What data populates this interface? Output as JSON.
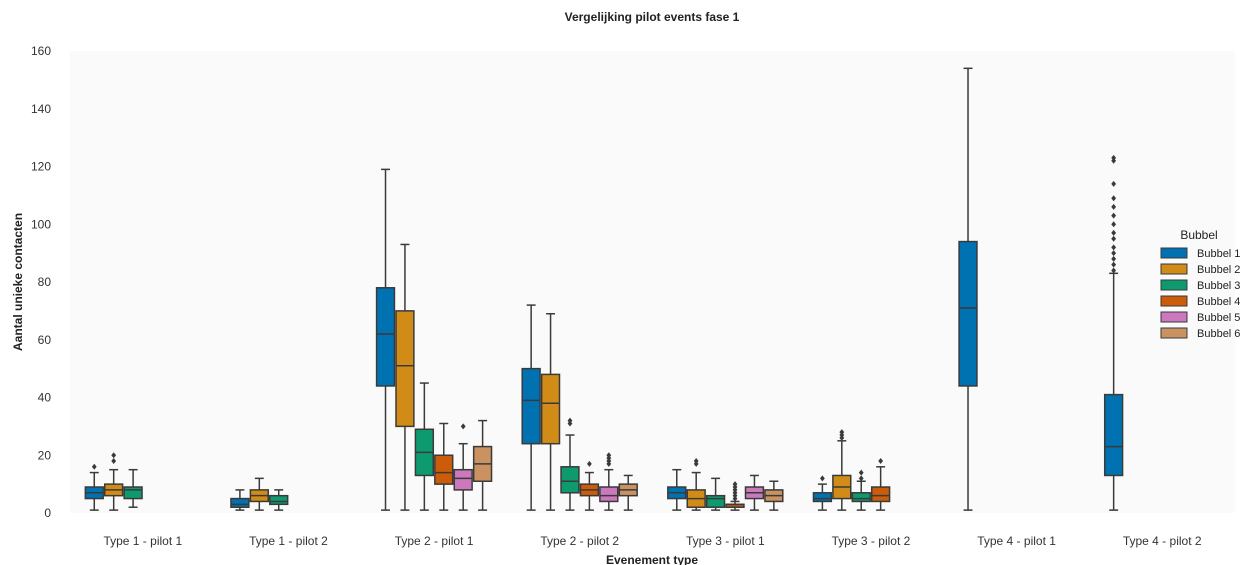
{
  "chart_data": {
    "type": "box",
    "title": "Vergelijking pilot events fase 1",
    "xlabel": "Evenement type",
    "ylabel": "Aantal unieke contacten",
    "ylim": [
      0,
      160
    ],
    "yticks": [
      0,
      20,
      40,
      60,
      80,
      100,
      120,
      140,
      160
    ],
    "grid": false,
    "legend": {
      "title": "Bubbel",
      "position": "right"
    },
    "categories": [
      "Type 1 - pilot 1",
      "Type 1 - pilot 2",
      "Type 2 - pilot 1",
      "Type 2 - pilot 2",
      "Type 3 - pilot 1",
      "Type 3 - pilot 2",
      "Type 4 - pilot 1",
      "Type 4 - pilot 2"
    ],
    "series": [
      {
        "name": "Bubbel 1",
        "color": "#0072b2",
        "boxes": [
          {
            "category": 0,
            "min": 1,
            "q1": 5,
            "median": 7,
            "q3": 9,
            "max": 14,
            "outliers": [
              16
            ]
          },
          {
            "category": 1,
            "min": 1,
            "q1": 2,
            "median": 3,
            "q3": 5,
            "max": 8,
            "outliers": []
          },
          {
            "category": 2,
            "min": 1,
            "q1": 44,
            "median": 62,
            "q3": 78,
            "max": 119,
            "outliers": []
          },
          {
            "category": 3,
            "min": 1,
            "q1": 24,
            "median": 39,
            "q3": 50,
            "max": 72,
            "outliers": []
          },
          {
            "category": 4,
            "min": 1,
            "q1": 5,
            "median": 7,
            "q3": 9,
            "max": 15,
            "outliers": []
          },
          {
            "category": 5,
            "min": 1,
            "q1": 4,
            "median": 5,
            "q3": 7,
            "max": 10,
            "outliers": [
              12
            ]
          },
          {
            "category": 6,
            "min": 1,
            "q1": 44,
            "median": 71,
            "q3": 94,
            "max": 154,
            "outliers": []
          },
          {
            "category": 7,
            "min": 1,
            "q1": 13,
            "median": 23,
            "q3": 41,
            "max": 83,
            "outliers": [
              84,
              86,
              88,
              90,
              92,
              95,
              97,
              100,
              103,
              106,
              109,
              114,
              122,
              123
            ]
          }
        ]
      },
      {
        "name": "Bubbel 2",
        "color": "#d08c17",
        "boxes": [
          {
            "category": 0,
            "min": 1,
            "q1": 6,
            "median": 8,
            "q3": 10,
            "max": 15,
            "outliers": [
              18,
              20
            ]
          },
          {
            "category": 1,
            "min": 1,
            "q1": 4,
            "median": 6,
            "q3": 8,
            "max": 12,
            "outliers": []
          },
          {
            "category": 2,
            "min": 1,
            "q1": 30,
            "median": 51,
            "q3": 70,
            "max": 93,
            "outliers": []
          },
          {
            "category": 3,
            "min": 1,
            "q1": 24,
            "median": 38,
            "q3": 48,
            "max": 69,
            "outliers": []
          },
          {
            "category": 4,
            "min": 1,
            "q1": 2,
            "median": 5,
            "q3": 8,
            "max": 14,
            "outliers": [
              17,
              18
            ]
          },
          {
            "category": 5,
            "min": 1,
            "q1": 5,
            "median": 9,
            "q3": 13,
            "max": 25,
            "outliers": [
              26,
              27,
              28
            ]
          }
        ]
      },
      {
        "name": "Bubbel 3",
        "color": "#0e9a6f",
        "boxes": [
          {
            "category": 0,
            "min": 2,
            "q1": 5,
            "median": 8,
            "q3": 9,
            "max": 15,
            "outliers": []
          },
          {
            "category": 1,
            "min": 1,
            "q1": 3,
            "median": 4,
            "q3": 6,
            "max": 8,
            "outliers": []
          },
          {
            "category": 2,
            "min": 1,
            "q1": 13,
            "median": 21,
            "q3": 29,
            "max": 45,
            "outliers": []
          },
          {
            "category": 3,
            "min": 1,
            "q1": 7,
            "median": 11,
            "q3": 16,
            "max": 27,
            "outliers": [
              31,
              32
            ]
          },
          {
            "category": 4,
            "min": 1,
            "q1": 2,
            "median": 5,
            "q3": 6,
            "max": 12,
            "outliers": []
          },
          {
            "category": 5,
            "min": 1,
            "q1": 4,
            "median": 5,
            "q3": 7,
            "max": 11,
            "outliers": [
              12,
              14
            ]
          }
        ]
      },
      {
        "name": "Bubbel 4",
        "color": "#cc5c0a",
        "boxes": [
          {
            "category": 2,
            "min": 1,
            "q1": 10,
            "median": 14,
            "q3": 20,
            "max": 31,
            "outliers": []
          },
          {
            "category": 3,
            "min": 1,
            "q1": 6,
            "median": 8,
            "q3": 10,
            "max": 14,
            "outliers": [
              17
            ]
          },
          {
            "category": 4,
            "min": 1,
            "q1": 2,
            "median": 3,
            "q3": 3,
            "max": 4,
            "outliers": [
              5,
              6,
              7,
              8,
              9,
              10
            ]
          },
          {
            "category": 5,
            "min": 1,
            "q1": 4,
            "median": 6,
            "q3": 9,
            "max": 16,
            "outliers": [
              18
            ]
          }
        ]
      },
      {
        "name": "Bubbel 5",
        "color": "#cc78bc",
        "boxes": [
          {
            "category": 2,
            "min": 1,
            "q1": 8,
            "median": 12,
            "q3": 15,
            "max": 24,
            "outliers": [
              30
            ]
          },
          {
            "category": 3,
            "min": 1,
            "q1": 4,
            "median": 6,
            "q3": 9,
            "max": 15,
            "outliers": [
              17,
              18,
              19,
              20
            ]
          },
          {
            "category": 4,
            "min": 1,
            "q1": 5,
            "median": 7,
            "q3": 9,
            "max": 13,
            "outliers": []
          }
        ]
      },
      {
        "name": "Bubbel 6",
        "color": "#ca9161",
        "boxes": [
          {
            "category": 2,
            "min": 1,
            "q1": 11,
            "median": 17,
            "q3": 23,
            "max": 32,
            "outliers": []
          },
          {
            "category": 3,
            "min": 1,
            "q1": 6,
            "median": 8,
            "q3": 10,
            "max": 13,
            "outliers": []
          },
          {
            "category": 4,
            "min": 1,
            "q1": 4,
            "median": 6,
            "q3": 8,
            "max": 11,
            "outliers": []
          }
        ]
      }
    ]
  }
}
